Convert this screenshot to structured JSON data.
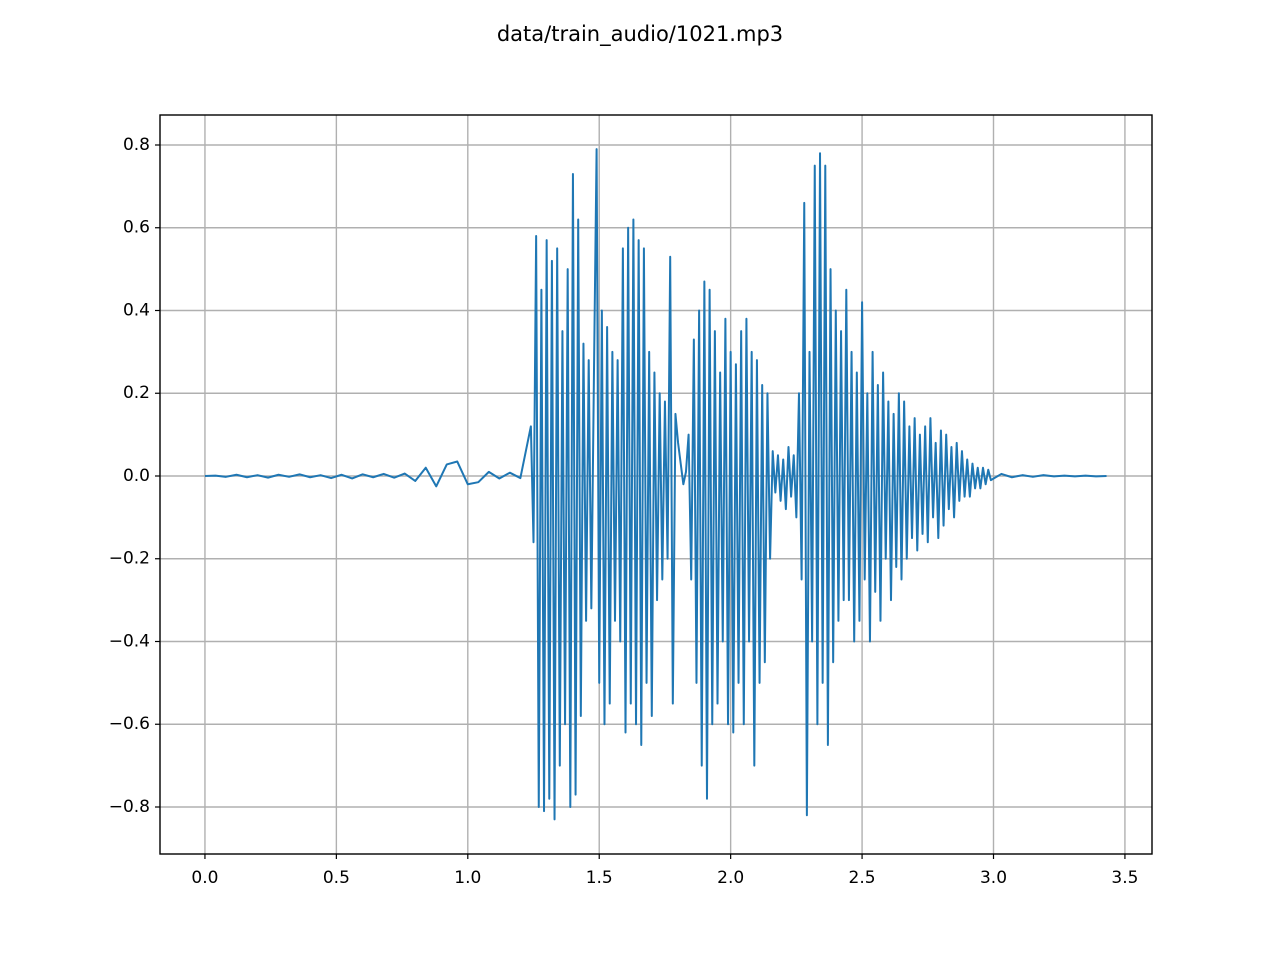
{
  "chart_data": {
    "type": "line",
    "title": "data/train_audio/1021.mp3",
    "color": "#1f77b4",
    "grid": true,
    "xlim": [
      -0.171,
      3.603
    ],
    "ylim": [
      -0.9136,
      0.8725
    ],
    "xticks": [
      {
        "value": 0,
        "label": "0.0"
      },
      0.5,
      {
        "value": 1,
        "label": "1.0"
      },
      1.5,
      {
        "value": 2,
        "label": "2.0"
      },
      2.5,
      {
        "value": 3,
        "label": "3.0"
      },
      3.5
    ],
    "yticks": [
      {
        "value": -0.8,
        "label": "−0.8"
      },
      {
        "value": -0.6,
        "label": "−0.6"
      },
      {
        "value": -0.4,
        "label": "−0.4"
      },
      {
        "value": -0.2,
        "label": "−0.2"
      },
      {
        "value": 0,
        "label": "0.0"
      },
      0.2,
      0.4,
      0.6,
      0.8
    ],
    "x": [
      0,
      0.04,
      0.08,
      0.12,
      0.16,
      0.2,
      0.24,
      0.28,
      0.32,
      0.36,
      0.4,
      0.44,
      0.48,
      0.52,
      0.56,
      0.6,
      0.64,
      0.68,
      0.72,
      0.76,
      0.8,
      0.84,
      0.88,
      0.92,
      0.96,
      1.0,
      1.04,
      1.08,
      1.12,
      1.16,
      1.2,
      1.24,
      1.25,
      1.26,
      1.27,
      1.28,
      1.29,
      1.3,
      1.31,
      1.32,
      1.33,
      1.34,
      1.35,
      1.36,
      1.37,
      1.38,
      1.39,
      1.4,
      1.41,
      1.42,
      1.43,
      1.44,
      1.45,
      1.46,
      1.47,
      1.48,
      1.49,
      1.5,
      1.51,
      1.52,
      1.53,
      1.54,
      1.55,
      1.56,
      1.57,
      1.58,
      1.59,
      1.6,
      1.61,
      1.62,
      1.63,
      1.64,
      1.65,
      1.66,
      1.67,
      1.68,
      1.69,
      1.7,
      1.71,
      1.72,
      1.73,
      1.74,
      1.75,
      1.76,
      1.77,
      1.78,
      1.79,
      1.8,
      1.81,
      1.82,
      1.83,
      1.84,
      1.85,
      1.86,
      1.87,
      1.88,
      1.89,
      1.9,
      1.91,
      1.92,
      1.93,
      1.94,
      1.95,
      1.96,
      1.97,
      1.98,
      1.99,
      2.0,
      2.01,
      2.02,
      2.03,
      2.04,
      2.05,
      2.06,
      2.07,
      2.08,
      2.09,
      2.1,
      2.11,
      2.12,
      2.13,
      2.14,
      2.15,
      2.16,
      2.17,
      2.18,
      2.19,
      2.2,
      2.21,
      2.22,
      2.23,
      2.24,
      2.25,
      2.26,
      2.27,
      2.28,
      2.29,
      2.3,
      2.31,
      2.32,
      2.33,
      2.34,
      2.35,
      2.36,
      2.37,
      2.38,
      2.39,
      2.4,
      2.41,
      2.42,
      2.43,
      2.44,
      2.45,
      2.46,
      2.47,
      2.48,
      2.49,
      2.5,
      2.51,
      2.52,
      2.53,
      2.54,
      2.55,
      2.56,
      2.57,
      2.58,
      2.59,
      2.6,
      2.61,
      2.62,
      2.63,
      2.64,
      2.65,
      2.66,
      2.67,
      2.68,
      2.69,
      2.7,
      2.71,
      2.72,
      2.73,
      2.74,
      2.75,
      2.76,
      2.77,
      2.78,
      2.79,
      2.8,
      2.81,
      2.82,
      2.83,
      2.84,
      2.85,
      2.86,
      2.87,
      2.88,
      2.89,
      2.9,
      2.91,
      2.92,
      2.93,
      2.94,
      2.95,
      2.96,
      2.97,
      2.98,
      2.99,
      3.03,
      3.07,
      3.11,
      3.15,
      3.19,
      3.23,
      3.27,
      3.31,
      3.35,
      3.39,
      3.43
    ],
    "values": [
      0,
      0.001,
      -0.002,
      0.003,
      -0.003,
      0.002,
      -0.004,
      0.003,
      -0.002,
      0.004,
      -0.003,
      0.002,
      -0.005,
      0.003,
      -0.006,
      0.004,
      -0.003,
      0.005,
      -0.004,
      0.006,
      -0.012,
      0.02,
      -0.025,
      0.028,
      0.035,
      -0.02,
      -0.015,
      0.01,
      -0.006,
      0.008,
      -0.005,
      0.12,
      -0.16,
      0.58,
      -0.8,
      0.45,
      -0.81,
      0.57,
      -0.78,
      0.52,
      -0.83,
      0.55,
      -0.7,
      0.35,
      -0.6,
      0.5,
      -0.8,
      0.73,
      -0.77,
      0.62,
      -0.58,
      0.32,
      -0.35,
      0.28,
      -0.32,
      0.25,
      0.79,
      -0.5,
      0.4,
      -0.6,
      0.36,
      -0.55,
      0.3,
      -0.35,
      0.28,
      -0.4,
      0.55,
      -0.62,
      0.6,
      -0.55,
      0.62,
      -0.6,
      0.57,
      -0.65,
      0.55,
      -0.5,
      0.3,
      -0.58,
      0.25,
      -0.3,
      0.2,
      -0.25,
      0.18,
      -0.2,
      0.53,
      -0.55,
      0.15,
      0.08,
      0.03,
      -0.02,
      0.01,
      0.1,
      -0.25,
      0.33,
      -0.5,
      0.4,
      -0.7,
      0.47,
      -0.78,
      0.45,
      -0.6,
      0.35,
      -0.55,
      0.25,
      -0.4,
      0.38,
      -0.6,
      0.3,
      -0.62,
      0.27,
      -0.5,
      0.35,
      -0.6,
      0.38,
      -0.4,
      0.3,
      -0.7,
      0.28,
      -0.5,
      0.22,
      -0.45,
      0.2,
      -0.2,
      0.06,
      -0.04,
      0.05,
      -0.06,
      0.04,
      -0.08,
      0.07,
      -0.05,
      0.05,
      -0.1,
      0.2,
      -0.25,
      0.66,
      -0.82,
      0.3,
      -0.4,
      0.75,
      -0.6,
      0.78,
      -0.5,
      0.75,
      -0.65,
      0.5,
      -0.45,
      0.4,
      -0.35,
      0.35,
      -0.3,
      0.45,
      -0.3,
      0.3,
      -0.4,
      0.25,
      -0.35,
      0.42,
      -0.25,
      0.2,
      -0.4,
      0.3,
      -0.28,
      0.22,
      -0.35,
      0.25,
      -0.2,
      0.18,
      -0.3,
      0.15,
      -0.22,
      0.2,
      -0.25,
      0.18,
      -0.2,
      0.12,
      -0.15,
      0.14,
      -0.18,
      0.1,
      -0.14,
      0.12,
      -0.16,
      0.14,
      -0.1,
      0.08,
      -0.15,
      0.11,
      -0.12,
      0.1,
      -0.08,
      0.07,
      -0.1,
      0.08,
      -0.06,
      0.06,
      -0.05,
      0.04,
      -0.05,
      0.03,
      -0.03,
      0.02,
      -0.03,
      0.02,
      -0.02,
      0.015,
      -0.01,
      0.005,
      -0.003,
      0.002,
      -0.002,
      0.002,
      -0.001,
      0.001,
      -0.001,
      0.001,
      -0.001,
      0
    ]
  }
}
